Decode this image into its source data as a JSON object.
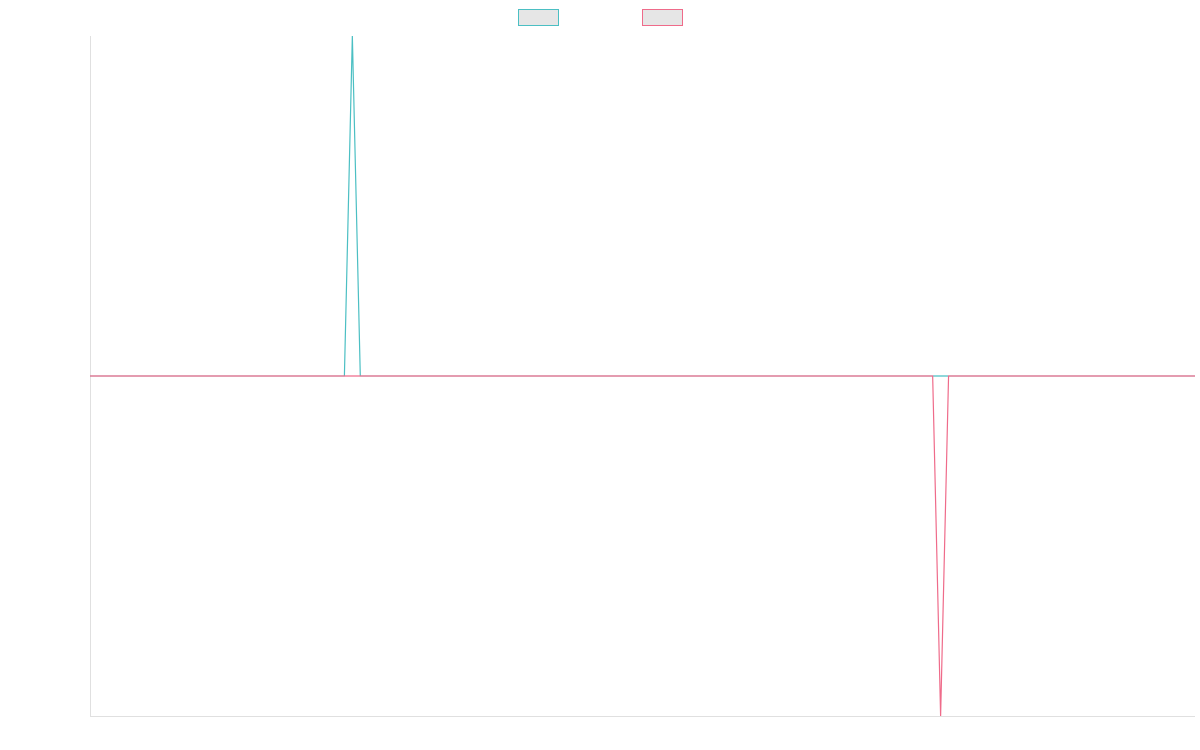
{
  "chart_data": {
    "type": "line",
    "title": "",
    "xlabel": "",
    "ylabel": "",
    "grid": false,
    "legend": "top-center",
    "n_points": 140,
    "ylim": [
      -1,
      1
    ],
    "series": [
      {
        "color": "#4bbfc3",
        "fill": "#e6e6e6",
        "points": [
          {
            "x": 0,
            "y": 0
          },
          {
            "x": 32,
            "y": 0
          },
          {
            "x": 33,
            "y": 1
          },
          {
            "x": 34,
            "y": 0
          },
          {
            "x": 139,
            "y": 0
          }
        ]
      },
      {
        "color": "#ef6b8a",
        "fill": "#e6e6e6",
        "points": [
          {
            "x": 0,
            "y": 0
          },
          {
            "x": 106,
            "y": 0
          },
          {
            "x": 107,
            "y": -1
          },
          {
            "x": 108,
            "y": 0
          },
          {
            "x": 139,
            "y": 0
          }
        ]
      }
    ]
  }
}
